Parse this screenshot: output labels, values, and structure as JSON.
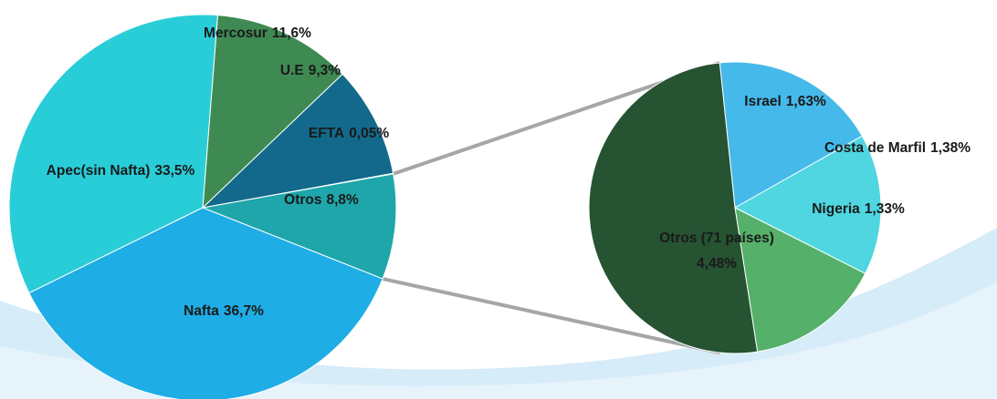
{
  "chart_data": [
    {
      "type": "pie",
      "categories": [
        "Otros",
        "EFTA",
        "U.E",
        "Mercosur",
        "Apec(sin Nafta)",
        "Nafta"
      ],
      "values": [
        8.8,
        0.05,
        9.3,
        11.6,
        33.5,
        36.7
      ],
      "value_labels": [
        "8,8%",
        "0,05%",
        "9,3%",
        "11,6%",
        "33,5%",
        "36,7%"
      ],
      "colors": [
        "#1fa6aa",
        "#1b8fc6",
        "#12698b",
        "#3f8a52",
        "#29cdd8",
        "#1fade5"
      ]
    },
    {
      "type": "pie",
      "categories": [
        "Israel",
        "Costa de Marfil",
        "Nigeria",
        "Otros (71 países)"
      ],
      "values": [
        1.63,
        1.38,
        1.33,
        4.48
      ],
      "value_labels": [
        "1,63%",
        "1,38%",
        "1,33%",
        "4,48%"
      ],
      "colors": [
        "#45b9ea",
        "#4fd6e0",
        "#55b06a",
        "#265331"
      ]
    }
  ]
}
